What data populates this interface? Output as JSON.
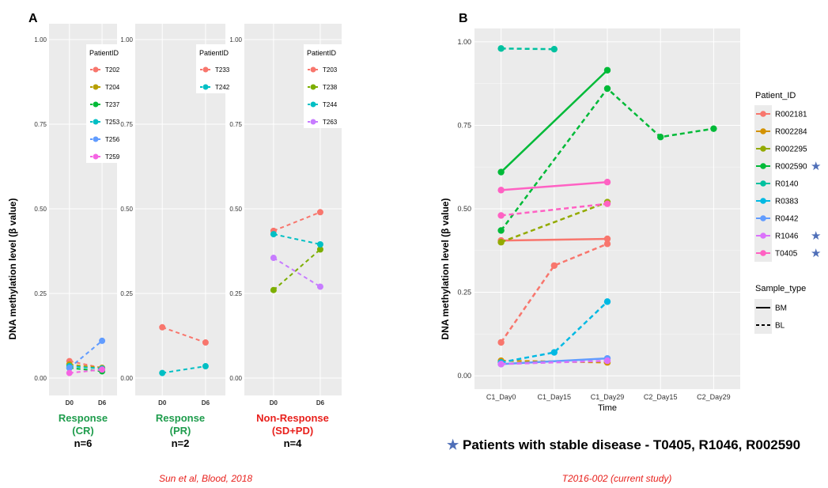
{
  "figure": {
    "panel_a_letter": "A",
    "panel_b_letter": "B",
    "panel_a_ylabel": "DNA methylation level (β value)",
    "panel_b_ylabel": "DNA methylation level (β value)",
    "panel_a_citation": "Sun et al, Blood, 2018",
    "panel_b_citation": "T2016-002 (current study)",
    "stable_disease_note": "Patients with stable disease - T0405, R1046, R002590",
    "star_glyph": "★",
    "star_color": "#4f6fb8",
    "panel_bg": "#ebebeb",
    "grid_color": "#ffffff"
  },
  "groups": [
    {
      "title_line1": "Response",
      "title_line2": "(CR)",
      "n_label": "n=6",
      "title_color": "#1e9c4c"
    },
    {
      "title_line1": "Response",
      "title_line2": "(PR)",
      "n_label": "n=2",
      "title_color": "#1e9c4c"
    },
    {
      "title_line1": "Non-Response",
      "title_line2": "(SD+PD)",
      "n_label": "n=4",
      "title_color": "#e8201c"
    }
  ],
  "chart_data": [
    {
      "type": "line",
      "panel": "A-CR",
      "categories": [
        "D0",
        "D6"
      ],
      "ylim": [
        0,
        1
      ],
      "yticks": [
        "0.00",
        "0.25",
        "0.50",
        "0.75",
        "1.00"
      ],
      "legend_title": "PatientID",
      "legend_position": "top-right",
      "series": [
        {
          "name": "T202",
          "color": "#f8766d",
          "values": [
            0.05,
            0.03
          ]
        },
        {
          "name": "T204",
          "color": "#b79f00",
          "values": [
            0.04,
            0.03
          ]
        },
        {
          "name": "T237",
          "color": "#00ba38",
          "values": [
            0.03,
            0.02
          ]
        },
        {
          "name": "T253",
          "color": "#00bfc4",
          "values": [
            0.035,
            0.028
          ]
        },
        {
          "name": "T256",
          "color": "#619cff",
          "values": [
            0.03,
            0.11
          ]
        },
        {
          "name": "T259",
          "color": "#f564e3",
          "values": [
            0.015,
            0.025
          ]
        }
      ]
    },
    {
      "type": "line",
      "panel": "A-PR",
      "categories": [
        "D0",
        "D6"
      ],
      "ylim": [
        0,
        1
      ],
      "yticks": [
        "0.00",
        "0.25",
        "0.50",
        "0.75",
        "1.00"
      ],
      "legend_title": "PatientID",
      "legend_position": "top-right",
      "series": [
        {
          "name": "T233",
          "color": "#f8766d",
          "values": [
            0.15,
            0.105
          ]
        },
        {
          "name": "T242",
          "color": "#00bfc4",
          "values": [
            0.015,
            0.035
          ]
        }
      ]
    },
    {
      "type": "line",
      "panel": "A-NR",
      "categories": [
        "D0",
        "D6"
      ],
      "ylim": [
        0,
        1
      ],
      "yticks": [
        "0.00",
        "0.25",
        "0.50",
        "0.75",
        "1.00"
      ],
      "legend_title": "PatientID",
      "legend_position": "top-right",
      "series": [
        {
          "name": "T203",
          "color": "#f8766d",
          "values": [
            0.435,
            0.49
          ]
        },
        {
          "name": "T238",
          "color": "#7cae00",
          "values": [
            0.26,
            0.38
          ]
        },
        {
          "name": "T244",
          "color": "#00bfc4",
          "values": [
            0.425,
            0.395
          ]
        },
        {
          "name": "T263",
          "color": "#c77cff",
          "values": [
            0.355,
            0.27
          ]
        }
      ]
    },
    {
      "type": "line",
      "panel": "B",
      "categories": [
        "C1_Day0",
        "C1_Day15",
        "C1_Day29",
        "C2_Day15",
        "C2_Day29"
      ],
      "xlabel": "Time",
      "ylim": [
        -0.04,
        1.04
      ],
      "yticks": [
        "0.00",
        "0.25",
        "0.50",
        "0.75",
        "1.00"
      ],
      "legend_position": "right",
      "legend_title": "Patient_ID",
      "linetype_legend_title": "Sample_type",
      "linetype_legend": [
        "BM",
        "BL"
      ],
      "patients": [
        {
          "name": "R002181",
          "color": "#f8766d",
          "starred": false
        },
        {
          "name": "R002284",
          "color": "#d39200",
          "starred": false
        },
        {
          "name": "R002295",
          "color": "#93aa00",
          "starred": false
        },
        {
          "name": "R002590",
          "color": "#00ba38",
          "starred": true
        },
        {
          "name": "R0140",
          "color": "#00c19f",
          "starred": false
        },
        {
          "name": "R0383",
          "color": "#00b9e3",
          "starred": false
        },
        {
          "name": "R0442",
          "color": "#619cff",
          "starred": false
        },
        {
          "name": "R1046",
          "color": "#db72fb",
          "starred": true
        },
        {
          "name": "T0405",
          "color": "#ff61c3",
          "starred": true
        }
      ],
      "series": [
        {
          "name": "R002181",
          "sample_type": "BM",
          "color": "#f8766d",
          "points": [
            [
              "C1_Day0",
              0.405
            ],
            [
              "C1_Day29",
              0.41
            ]
          ]
        },
        {
          "name": "R002181",
          "sample_type": "BL",
          "color": "#f8766d",
          "points": [
            [
              "C1_Day0",
              0.1
            ],
            [
              "C1_Day15",
              0.33
            ],
            [
              "C1_Day29",
              0.395
            ]
          ]
        },
        {
          "name": "R002284",
          "sample_type": "BL",
          "color": "#d39200",
          "points": [
            [
              "C1_Day0",
              0.045
            ],
            [
              "C1_Day29",
              0.04
            ]
          ]
        },
        {
          "name": "R002295",
          "sample_type": "BL",
          "color": "#93aa00",
          "points": [
            [
              "C1_Day0",
              0.4
            ],
            [
              "C1_Day29",
              0.52
            ]
          ]
        },
        {
          "name": "R002590",
          "sample_type": "BM",
          "color": "#00ba38",
          "points": [
            [
              "C1_Day0",
              0.61
            ],
            [
              "C1_Day29",
              0.915
            ]
          ]
        },
        {
          "name": "R002590",
          "sample_type": "BL",
          "color": "#00ba38",
          "points": [
            [
              "C1_Day0",
              0.435
            ],
            [
              "C1_Day29",
              0.86
            ],
            [
              "C2_Day15",
              0.715
            ],
            [
              "C2_Day29",
              0.74
            ]
          ]
        },
        {
          "name": "R0140",
          "sample_type": "BL",
          "color": "#00c19f",
          "points": [
            [
              "C1_Day0",
              0.98
            ],
            [
              "C1_Day15",
              0.978
            ]
          ]
        },
        {
          "name": "R0383",
          "sample_type": "BL",
          "color": "#00b9e3",
          "points": [
            [
              "C1_Day0",
              0.04
            ],
            [
              "C1_Day15",
              0.07
            ],
            [
              "C1_Day29",
              0.222
            ]
          ]
        },
        {
          "name": "R0442",
          "sample_type": "BM",
          "color": "#619cff",
          "points": [
            [
              "C1_Day0",
              0.035
            ],
            [
              "C1_Day29",
              0.052
            ]
          ]
        },
        {
          "name": "R1046",
          "sample_type": "BL",
          "color": "#db72fb",
          "points": [
            [
              "C1_Day0",
              0.035
            ],
            [
              "C1_Day29",
              0.045
            ]
          ]
        },
        {
          "name": "T0405",
          "sample_type": "BM",
          "color": "#ff61c3",
          "points": [
            [
              "C1_Day0",
              0.556
            ],
            [
              "C1_Day29",
              0.58
            ]
          ]
        },
        {
          "name": "T0405",
          "sample_type": "BL",
          "color": "#ff61c3",
          "points": [
            [
              "C1_Day0",
              0.48
            ],
            [
              "C1_Day29",
              0.515
            ]
          ]
        }
      ]
    }
  ]
}
